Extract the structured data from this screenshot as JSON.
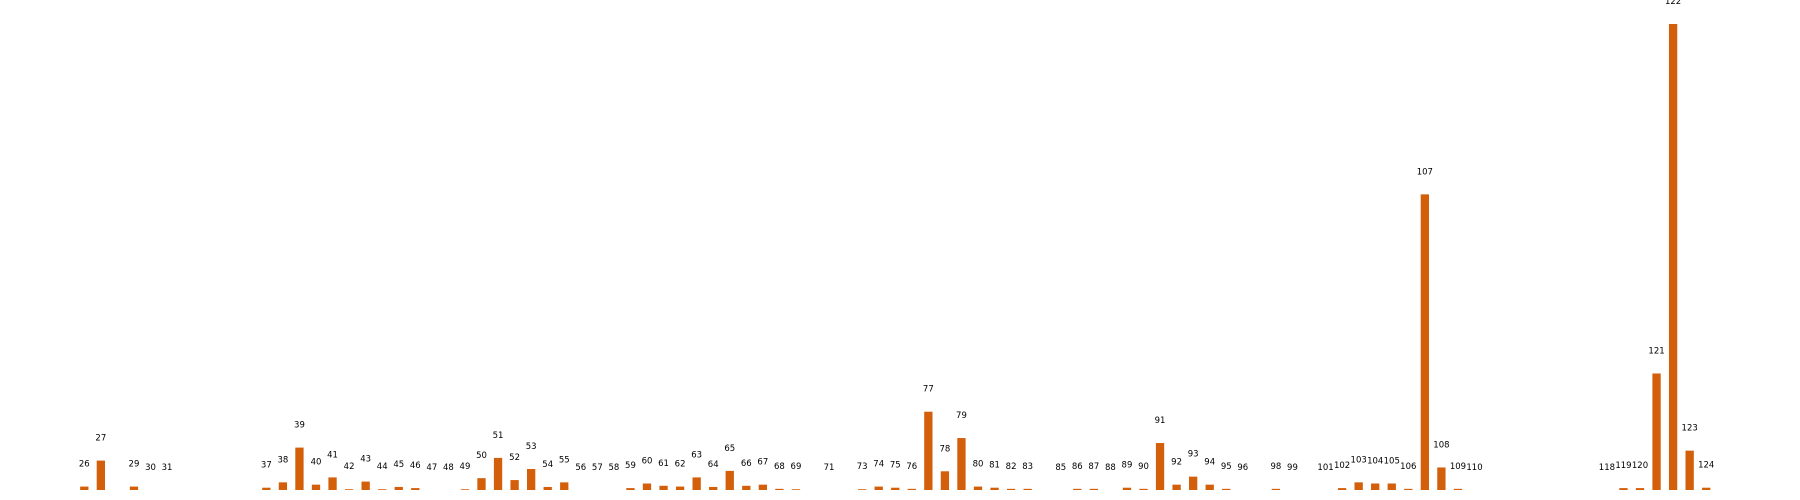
{
  "chart_data": {
    "type": "bar",
    "title": "",
    "xlabel": "",
    "ylabel": "",
    "color": "#d35f0a",
    "grid": false,
    "ylim": [
      0,
      122
    ],
    "data_labels_are_categories": true,
    "categories": [
      "26",
      "27",
      "29",
      "30",
      "31",
      "37",
      "38",
      "39",
      "40",
      "41",
      "42",
      "43",
      "44",
      "45",
      "46",
      "47",
      "48",
      "49",
      "50",
      "51",
      "52",
      "53",
      "54",
      "55",
      "56",
      "57",
      "58",
      "59",
      "60",
      "61",
      "62",
      "63",
      "64",
      "65",
      "66",
      "67",
      "68",
      "69",
      "71",
      "73",
      "74",
      "75",
      "76",
      "77",
      "78",
      "79",
      "80",
      "81",
      "82",
      "83",
      "85",
      "86",
      "87",
      "88",
      "89",
      "90",
      "91",
      "92",
      "93",
      "94",
      "95",
      "96",
      "98",
      "99",
      "101",
      "102",
      "103",
      "104",
      "105",
      "106",
      "107",
      "108",
      "109",
      "110",
      "118",
      "119",
      "120",
      "121",
      "122",
      "123",
      "124"
    ],
    "values": [
      0.9,
      7.7,
      0.9,
      0,
      0,
      0.6,
      2.0,
      11.1,
      1.4,
      3.3,
      0.2,
      2.2,
      0.2,
      0.8,
      0.5,
      0,
      0,
      0.2,
      3.1,
      8.4,
      2.6,
      5.5,
      0.8,
      2.0,
      0,
      0,
      0,
      0.5,
      1.7,
      1.1,
      0.9,
      3.3,
      0.8,
      5.0,
      1.1,
      1.4,
      0.3,
      0.2,
      0,
      0.2,
      0.9,
      0.6,
      0.3,
      20.5,
      4.9,
      13.6,
      0.9,
      0.6,
      0.3,
      0.3,
      0,
      0.3,
      0.3,
      0,
      0.6,
      0.3,
      12.3,
      1.4,
      3.5,
      1.4,
      0.3,
      0,
      0.3,
      0,
      0,
      0.5,
      2.0,
      1.7,
      1.7,
      0.3,
      77.4,
      5.9,
      0.3,
      0,
      0,
      0.5,
      0.5,
      30.5,
      122,
      10.3,
      0.6
    ]
  }
}
